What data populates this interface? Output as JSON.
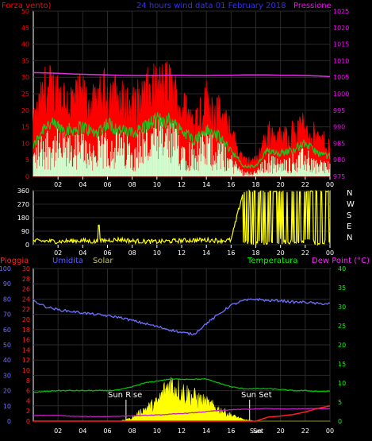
{
  "colors": {
    "background": "#000000",
    "frame": "#ffffff",
    "grid": "#2a2a2a",
    "wind_gust": "#ff0000",
    "wind_avg": "#20c020",
    "wind_speed": "#d0ffd0",
    "pressure": "#e030e0",
    "direction": "#ffff00",
    "rain": "#ff2020",
    "humidity": "#7070ff",
    "solar": "#ffff00",
    "temperature": "#00c000",
    "dewpoint": "#c020c0",
    "title": "#3030ff",
    "header_left": "#ff0000",
    "header_right": "#ff00ff",
    "humidity_label": "#5a5aff",
    "solar_label": "#c0c070",
    "temp_label": "#00ff00",
    "dew_label": "#ff20ff",
    "text": "#ffffff"
  },
  "panel1": {
    "label_left": "Forza vento)",
    "title": "24 hours wind data  01 February 2018",
    "label_right": "Pressione",
    "left_ticks": [
      "0",
      "5",
      "10",
      "15",
      "20",
      "25",
      "30",
      "35",
      "40",
      "45",
      "50"
    ],
    "right_ticks": [
      "975",
      "980",
      "985",
      "990",
      "995",
      "1000",
      "1005",
      "1010",
      "1015",
      "1020",
      "1025"
    ],
    "x_ticks": [
      "02",
      "04",
      "06",
      "08",
      "10",
      "12",
      "14",
      "16",
      "18",
      "20",
      "22",
      "00"
    ]
  },
  "panel2": {
    "left_ticks": [
      "0",
      "90",
      "180",
      "270",
      "360"
    ],
    "compass": [
      "N",
      "W",
      "S",
      "E",
      "N"
    ],
    "x_ticks": [
      "02",
      "04",
      "06",
      "08",
      "10",
      "12",
      "14",
      "16",
      "18",
      "20",
      "22",
      "00"
    ]
  },
  "panel3": {
    "label_rain": "Pioggia",
    "label_humidity": "Umidita",
    "label_solar": "Solar",
    "label_temp": "Temperatura",
    "label_dew": "Dew Point (°C)",
    "humidity_ticks": [
      "0",
      "10",
      "20",
      "30",
      "40",
      "50",
      "60",
      "70",
      "80",
      "90",
      "100"
    ],
    "rain_ticks": [
      "0",
      "2",
      "4",
      "6",
      "8",
      "10",
      "12",
      "14",
      "16",
      "18",
      "20",
      "22",
      "24",
      "26",
      "28",
      "30"
    ],
    "temp_ticks": [
      "0",
      "5",
      "10",
      "15",
      "20",
      "25",
      "30",
      "35",
      "40"
    ],
    "x_ticks": [
      "02",
      "04",
      "06",
      "08",
      "10",
      "12",
      "14",
      "16",
      "Sun",
      "20",
      "22",
      "00"
    ],
    "sunrise": "Sun Rise",
    "sunset": "Sun Set",
    "sunset_short": "Set"
  },
  "chart_data": [
    {
      "type": "line",
      "x_unit": "hour",
      "ylim_left": [
        0,
        50
      ],
      "ylim_right": [
        975,
        1025
      ],
      "x": [
        0,
        1,
        2,
        3,
        4,
        5,
        6,
        7,
        8,
        9,
        10,
        11,
        12,
        13,
        14,
        15,
        16,
        17,
        18,
        19,
        20,
        21,
        22,
        23,
        24
      ],
      "series": [
        {
          "axis": "left",
          "values": [
            16,
            28,
            27,
            24,
            25,
            22,
            28,
            24,
            22,
            26,
            28,
            29,
            22,
            18,
            24,
            20,
            14,
            5,
            5,
            14,
            12,
            14,
            16,
            12,
            10
          ]
        },
        {
          "axis": "left",
          "values": [
            9,
            16,
            15,
            14,
            15,
            13,
            16,
            14,
            13,
            15,
            17,
            17,
            14,
            11,
            14,
            12,
            8,
            3,
            3,
            8,
            7,
            8,
            10,
            7,
            6
          ]
        },
        {
          "axis": "left",
          "values": [
            5,
            9,
            8,
            7,
            8,
            6,
            9,
            8,
            7,
            9,
            10,
            10,
            8,
            6,
            8,
            7,
            4,
            1,
            1,
            4,
            3,
            4,
            5,
            3,
            3
          ]
        },
        {
          "axis": "right",
          "values": [
            1006.4,
            1006.3,
            1006.2,
            1006.0,
            1005.9,
            1005.8,
            1005.7,
            1005.6,
            1005.5,
            1005.5,
            1005.5,
            1005.6,
            1005.6,
            1005.5,
            1005.5,
            1005.6,
            1005.6,
            1005.7,
            1005.7,
            1005.7,
            1005.6,
            1005.6,
            1005.5,
            1005.4,
            1005.2
          ]
        }
      ]
    },
    {
      "type": "scatter",
      "x_unit": "hour",
      "ylim": [
        0,
        360
      ],
      "x": [
        0,
        1,
        2,
        3,
        4,
        5,
        6,
        7,
        8,
        9,
        10,
        11,
        12,
        13,
        14,
        15,
        16,
        17,
        18,
        19,
        20,
        21,
        22,
        23,
        24
      ],
      "values": [
        25,
        25,
        22,
        25,
        28,
        20,
        30,
        35,
        25,
        22,
        20,
        24,
        28,
        30,
        32,
        28,
        30,
        360,
        350,
        10,
        355,
        20,
        360,
        15,
        355
      ]
    },
    {
      "type": "line",
      "x_unit": "hour",
      "ylim_humidity": [
        0,
        100
      ],
      "ylim_rain": [
        0,
        30
      ],
      "ylim_temp": [
        0,
        40
      ],
      "x": [
        0,
        1,
        2,
        3,
        4,
        5,
        6,
        7,
        8,
        9,
        10,
        11,
        12,
        13,
        14,
        15,
        16,
        17,
        18,
        19,
        20,
        21,
        22,
        23,
        24
      ],
      "series": [
        {
          "axis": "humidity",
          "values": [
            79,
            75,
            73,
            72,
            71,
            70,
            69,
            68,
            66,
            64,
            62,
            60,
            58,
            57,
            64,
            70,
            76,
            79,
            80,
            79,
            79,
            78,
            78,
            77,
            77
          ]
        },
        {
          "axis": "temp",
          "values": [
            7.5,
            7.8,
            8,
            8,
            8,
            8,
            8,
            8.2,
            9,
            10,
            10.5,
            11,
            11,
            11,
            11,
            10,
            9,
            8.5,
            8.5,
            8.5,
            8.3,
            8,
            8,
            7.8,
            7.8
          ]
        },
        {
          "axis": "temp",
          "values": [
            1.5,
            1.5,
            1.5,
            1.3,
            1.2,
            1.2,
            1.2,
            1.3,
            1.4,
            1.5,
            1.6,
            1.8,
            2,
            2.2,
            2.5,
            2.8,
            3.0,
            3.1,
            3.2,
            3.3,
            3.2,
            3.2,
            3.3,
            3.3,
            3.3
          ]
        },
        {
          "axis": "rain",
          "values": [
            0,
            0,
            0,
            0,
            0,
            0,
            0,
            0,
            0,
            0,
            0,
            0,
            0,
            0,
            0,
            0,
            0,
            0,
            0,
            0.8,
            1.0,
            1.3,
            1.8,
            2.5,
            3.0
          ]
        },
        {
          "axis": "humidity",
          "values": [
            0,
            0,
            0,
            0,
            0,
            0,
            0,
            0,
            2,
            8,
            12,
            25,
            20,
            16,
            12,
            8,
            4,
            1,
            0,
            0,
            0,
            0,
            0,
            0,
            0
          ]
        }
      ],
      "events": {
        "sunrise_hour": 7.5,
        "sunset_hour": 17.5
      }
    }
  ]
}
